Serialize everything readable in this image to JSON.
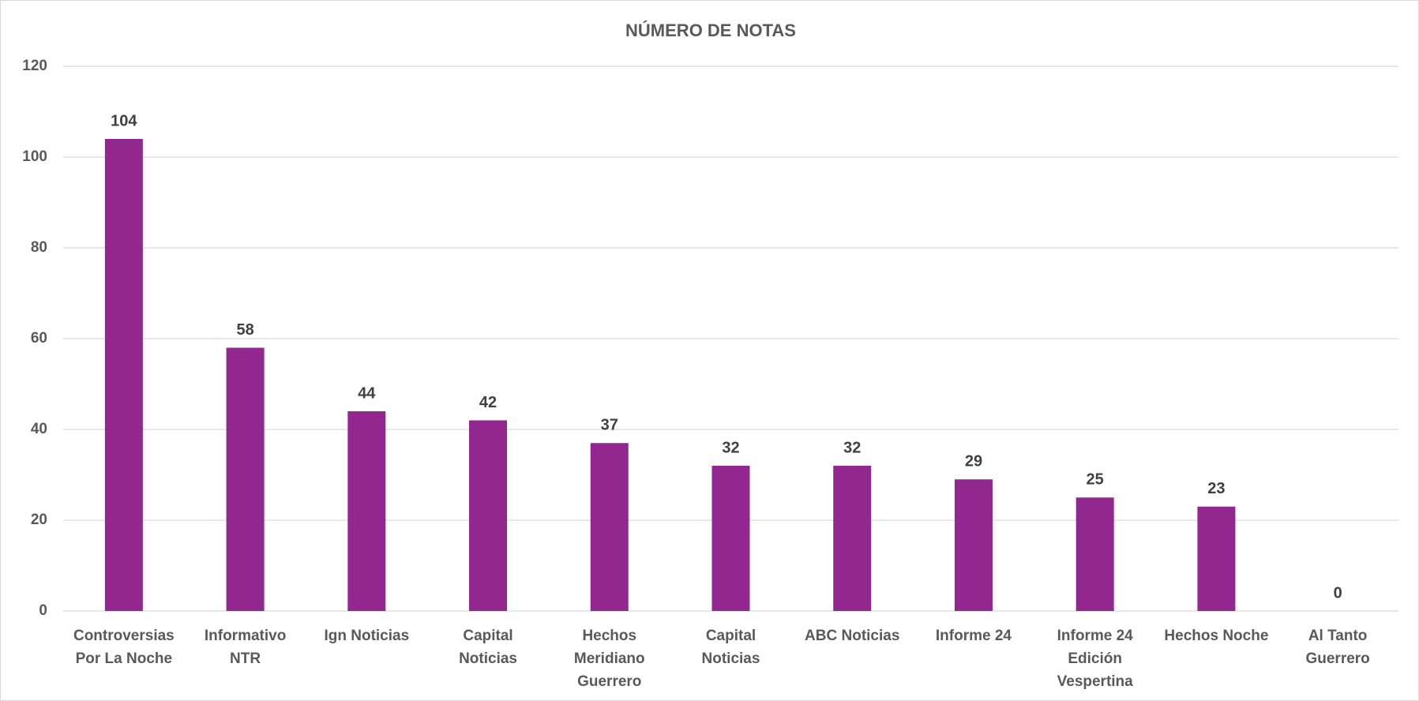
{
  "chart_data": {
    "type": "bar",
    "title": "NÚMERO DE NOTAS",
    "categories": [
      "Controversias Por La Noche",
      "Informativo NTR",
      "Ign Noticias",
      "Capital Noticias",
      "Hechos Meridiano Guerrero",
      "Capital Noticias",
      "ABC Noticias",
      "Informe 24",
      "Informe 24 Edición Vespertina",
      "Hechos Noche",
      "Al Tanto Guerrero"
    ],
    "values": [
      104,
      58,
      44,
      42,
      37,
      32,
      32,
      29,
      25,
      23,
      0
    ],
    "color": "#92278f",
    "ylim": [
      0,
      120
    ],
    "yticks": [
      0,
      20,
      40,
      60,
      80,
      100,
      120
    ],
    "grid": true
  }
}
